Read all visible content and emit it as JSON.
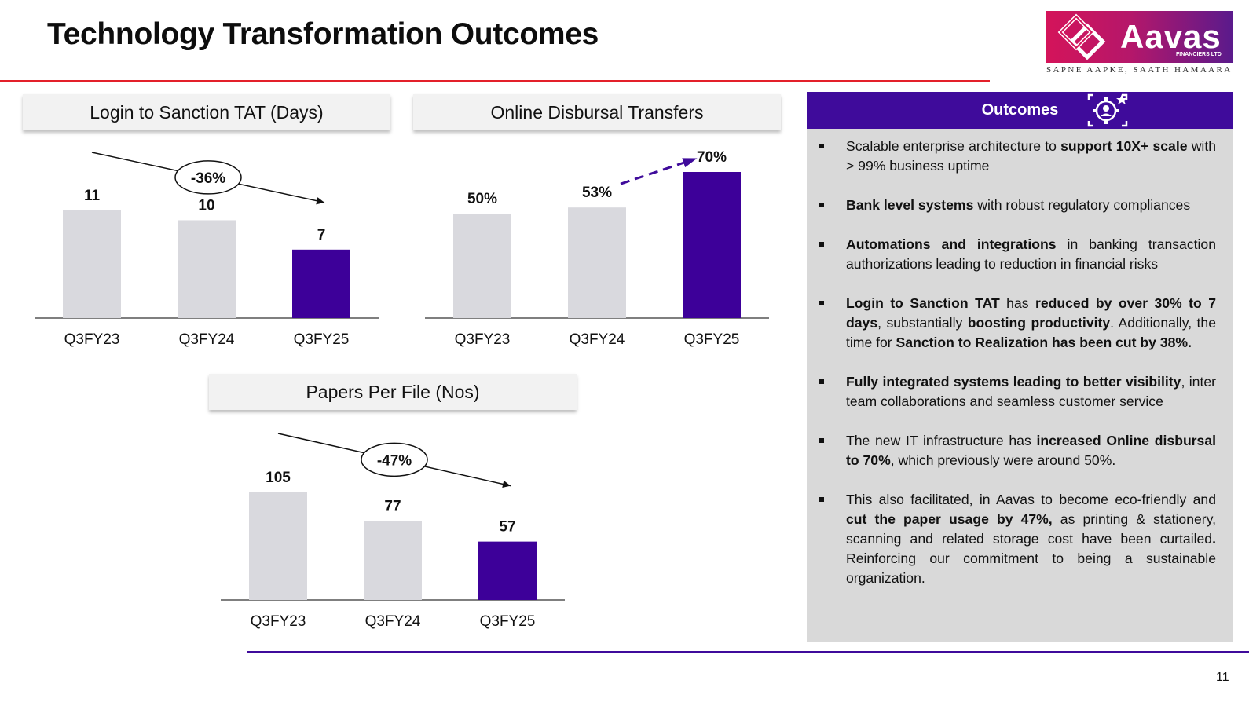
{
  "page": {
    "title": "Technology Transformation Outcomes",
    "page_number": "11"
  },
  "logo": {
    "brand": "Aavas",
    "subtitle": "FINANCIERS LTD",
    "tagline": "SAPNE AAPKE, SAATH HAMAARA"
  },
  "colors": {
    "accent_purple": "#3f0b9b",
    "bar_highlight": "#3d0099",
    "bar_default": "#d9d9de",
    "rule_red": "#e3202a",
    "panel_gray": "#d9d9d9"
  },
  "chart_data": [
    {
      "type": "bar",
      "title": "Login to Sanction TAT (Days)",
      "categories": [
        "Q3FY23",
        "Q3FY24",
        "Q3FY25"
      ],
      "values": [
        11,
        10,
        7
      ],
      "value_labels": [
        "11",
        "10",
        "7"
      ],
      "highlight_index": 2,
      "annotation": "-36%",
      "ylim": [
        0,
        11
      ]
    },
    {
      "type": "bar",
      "title": "Online Disbursal Transfers",
      "categories": [
        "Q3FY23",
        "Q3FY24",
        "Q3FY25"
      ],
      "values": [
        50,
        53,
        70
      ],
      "value_labels": [
        "50%",
        "53%",
        "70%"
      ],
      "highlight_index": 2,
      "annotation": "",
      "ylim": [
        0,
        70
      ]
    },
    {
      "type": "bar",
      "title": "Papers Per File (Nos)",
      "categories": [
        "Q3FY23",
        "Q3FY24",
        "Q3FY25"
      ],
      "values": [
        105,
        77,
        57
      ],
      "value_labels": [
        "105",
        "77",
        "57"
      ],
      "highlight_index": 2,
      "annotation": "-47%",
      "ylim": [
        0,
        105
      ]
    }
  ],
  "outcomes": {
    "title": "Outcomes",
    "icon": "gear-person-icon",
    "bullets": [
      [
        {
          "t": "Scalable enterprise architecture to "
        },
        {
          "t": "support 10X+ scale",
          "b": true
        },
        {
          "t": " with > 99% business uptime"
        }
      ],
      [
        {
          "t": "Bank level systems",
          "b": true
        },
        {
          "t": " with robust regulatory compliances"
        }
      ],
      [
        {
          "t": "Automations and integrations",
          "b": true
        },
        {
          "t": " in banking transaction authorizations leading to reduction in financial risks"
        }
      ],
      [
        {
          "t": "Login to Sanction TAT",
          "b": true
        },
        {
          "t": " has "
        },
        {
          "t": "reduced by over 30% to 7 days",
          "b": true
        },
        {
          "t": ", substantially "
        },
        {
          "t": "boosting productivity",
          "b": true
        },
        {
          "t": ". Additionally, the time for "
        },
        {
          "t": "Sanction to Realization has been cut by 38%.",
          "b": true
        }
      ],
      [
        {
          "t": "Fully integrated systems leading to better visibility",
          "b": true
        },
        {
          "t": ", inter team collaborations and seamless customer service"
        }
      ],
      [
        {
          "t": "The  new IT infrastructure has "
        },
        {
          "t": "increased Online disbursal to 70%",
          "b": true
        },
        {
          "t": ", which previously were around 50%."
        }
      ],
      [
        {
          "t": "This also facilitated, in Aavas to become eco-friendly and "
        },
        {
          "t": "cut the paper usage by 47%,",
          "b": true
        },
        {
          "t": " as printing & stationery, scanning and related storage cost have been curtailed"
        },
        {
          "t": ".",
          "b": true
        },
        {
          "t": " Reinforcing our commitment to being a sustainable organization."
        }
      ]
    ]
  }
}
